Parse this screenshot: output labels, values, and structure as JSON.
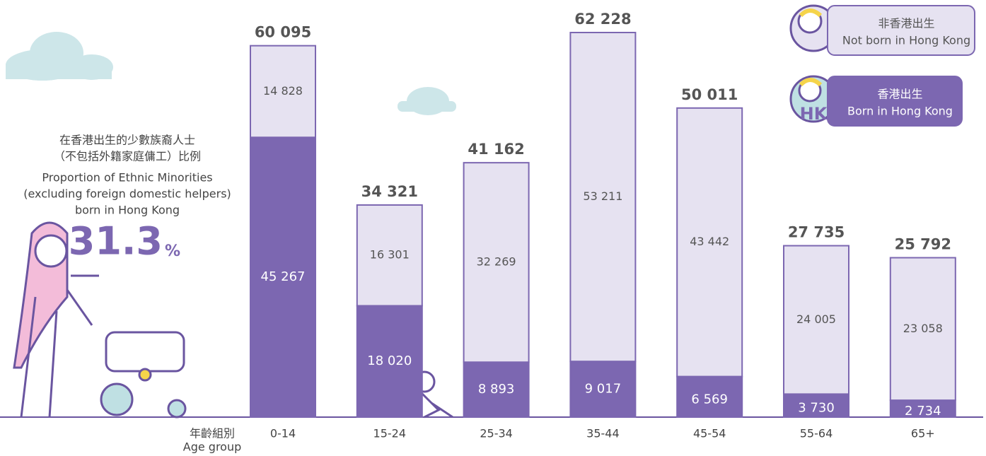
{
  "chart_data": {
    "type": "stacked-bar",
    "categories": [
      "0-14",
      "15-24",
      "25-34",
      "35-44",
      "45-54",
      "55-64",
      "65+"
    ],
    "x_label": [
      "年齡組別",
      "Age group"
    ],
    "series": [
      {
        "name": "Born in Hong Kong",
        "name_zh": "香港出生",
        "color": "#7c67b1",
        "values": [
          45267,
          18020,
          8893,
          9017,
          6569,
          3730,
          2734
        ],
        "value_labels": [
          "45 267",
          "18 020",
          "8 893",
          "9 017",
          "6 569",
          "3 730",
          "2 734"
        ]
      },
      {
        "name": "Not born in Hong Kong",
        "name_zh": "非香港出生",
        "color": "#e6e2f1",
        "values": [
          14828,
          16301,
          32269,
          53211,
          43442,
          24005,
          23058
        ],
        "value_labels": [
          "14 828",
          "16 301",
          "32 269",
          "53 211",
          "43 442",
          "24 005",
          "23 058"
        ]
      }
    ],
    "totals": {
      "values": [
        60095,
        34321,
        41162,
        62228,
        50011,
        27735,
        25792
      ],
      "value_labels": [
        "60 095",
        "34 321",
        "41 162",
        "62 228",
        "50 011",
        "27 735",
        "25 792"
      ]
    },
    "annotation": {
      "text_zh": [
        "在香港出生的少數族裔人士",
        "（不包括外籍家庭傭工）比例"
      ],
      "text_en": [
        "Proportion of Ethnic Minorities",
        "(excluding foreign domestic helpers)",
        "born in Hong Kong"
      ],
      "value": 31.3,
      "unit": "%"
    },
    "legend_tag": "HK"
  }
}
